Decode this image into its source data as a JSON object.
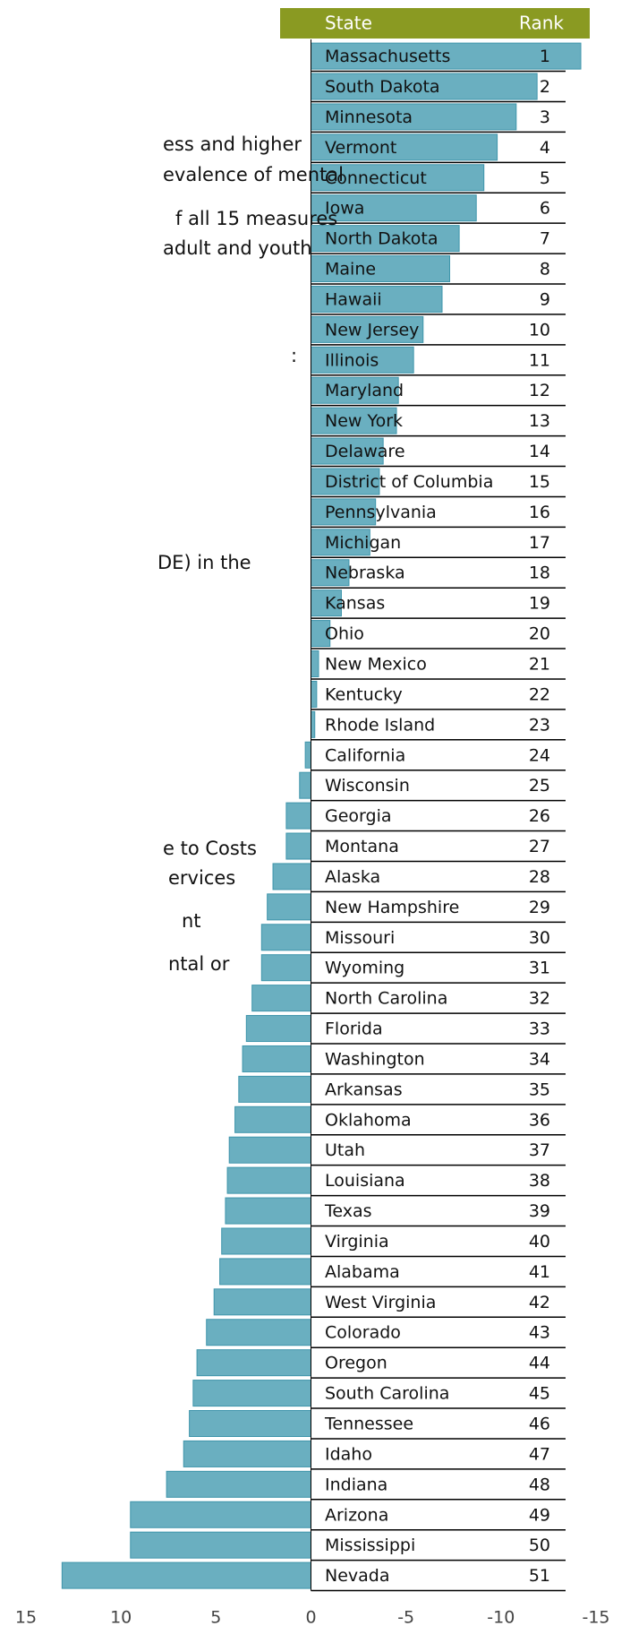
{
  "chart_data": {
    "type": "bar",
    "column_headers": [
      "State",
      "Rank"
    ],
    "categories": [
      "Massachusetts",
      "South Dakota",
      "Minnesota",
      "Vermont",
      "Connecticut",
      "Iowa",
      "North Dakota",
      "Maine",
      "Hawaii",
      "New Jersey",
      "Illinois",
      "Maryland",
      "New York",
      "Delaware",
      "District of Columbia",
      "Pennsylvania",
      "Michigan",
      "Nebraska",
      "Kansas",
      "Ohio",
      "New Mexico",
      "Kentucky",
      "Rhode Island",
      "California",
      "Wisconsin",
      "Georgia",
      "Montana",
      "Alaska",
      "New Hampshire",
      "Missouri",
      "Wyoming",
      "North Carolina",
      "Florida",
      "Washington",
      "Arkansas",
      "Oklahoma",
      "Utah",
      "Louisiana",
      "Texas",
      "Virginia",
      "Alabama",
      "West Virginia",
      "Colorado",
      "Oregon",
      "South Carolina",
      "Tennessee",
      "Idaho",
      "Indiana",
      "Arizona",
      "Mississippi",
      "Nevada"
    ],
    "ranks": [
      1,
      2,
      3,
      4,
      5,
      6,
      7,
      8,
      9,
      10,
      11,
      12,
      13,
      14,
      15,
      16,
      17,
      18,
      19,
      20,
      21,
      22,
      23,
      24,
      25,
      26,
      27,
      28,
      29,
      30,
      31,
      32,
      33,
      34,
      35,
      36,
      37,
      38,
      39,
      40,
      41,
      42,
      43,
      44,
      45,
      46,
      47,
      48,
      49,
      50,
      51
    ],
    "values": [
      -14.2,
      -11.9,
      -10.8,
      -9.8,
      -9.1,
      -8.7,
      -7.8,
      -7.3,
      -6.9,
      -5.9,
      -5.4,
      -4.6,
      -4.5,
      -3.8,
      -3.6,
      -3.4,
      -3.1,
      -2.0,
      -1.6,
      -1.0,
      -0.4,
      -0.3,
      -0.2,
      0.3,
      0.6,
      1.3,
      1.3,
      2.0,
      2.3,
      2.6,
      2.6,
      3.1,
      3.4,
      3.6,
      3.8,
      4.0,
      4.3,
      4.4,
      4.5,
      4.7,
      4.8,
      5.1,
      5.5,
      6.0,
      6.2,
      6.4,
      6.7,
      7.6,
      9.5,
      9.5,
      13.1
    ],
    "color": "#6aafc0",
    "header_color": "#8a9a22",
    "xlim": [
      15,
      -15
    ],
    "xticks": [
      15,
      10,
      5,
      0,
      -5,
      -10,
      -15
    ],
    "annotations": [
      "ess and higher",
      "evalence of mental",
      "f all 15 measures",
      "adult and youth",
      ":",
      "DE) in the",
      "e to Costs",
      "ervices",
      "nt",
      "ntal or"
    ]
  }
}
